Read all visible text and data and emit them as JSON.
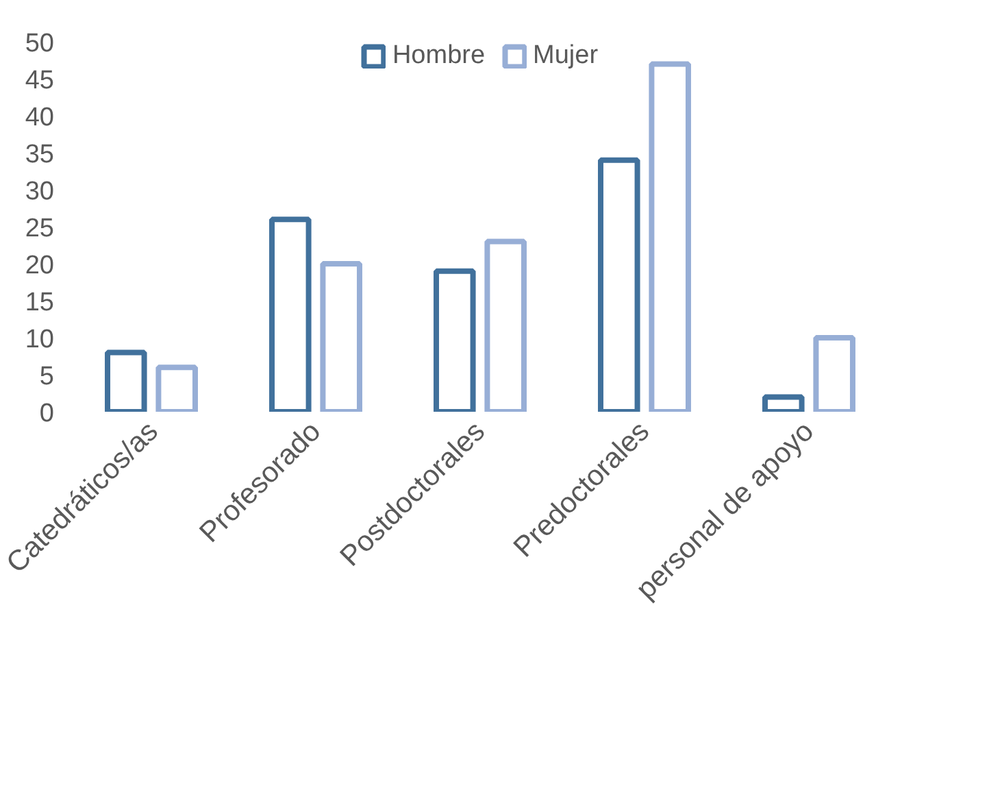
{
  "chart_data": {
    "type": "bar",
    "categories": [
      "Catedráticos/as",
      "Profesorado",
      "Postdoctorales",
      "Predoctorales",
      "personal de apoyo"
    ],
    "series": [
      {
        "name": "Hombre",
        "color": "#41719c",
        "values": [
          8,
          26,
          19,
          34,
          2
        ]
      },
      {
        "name": "Mujer",
        "color": "#97aed6",
        "values": [
          6,
          20,
          23,
          47,
          10
        ]
      }
    ],
    "ylim": [
      0,
      50
    ],
    "yticks": [
      0,
      5,
      10,
      15,
      20,
      25,
      30,
      35,
      40,
      45,
      50
    ],
    "grid": false,
    "legend": "top"
  }
}
